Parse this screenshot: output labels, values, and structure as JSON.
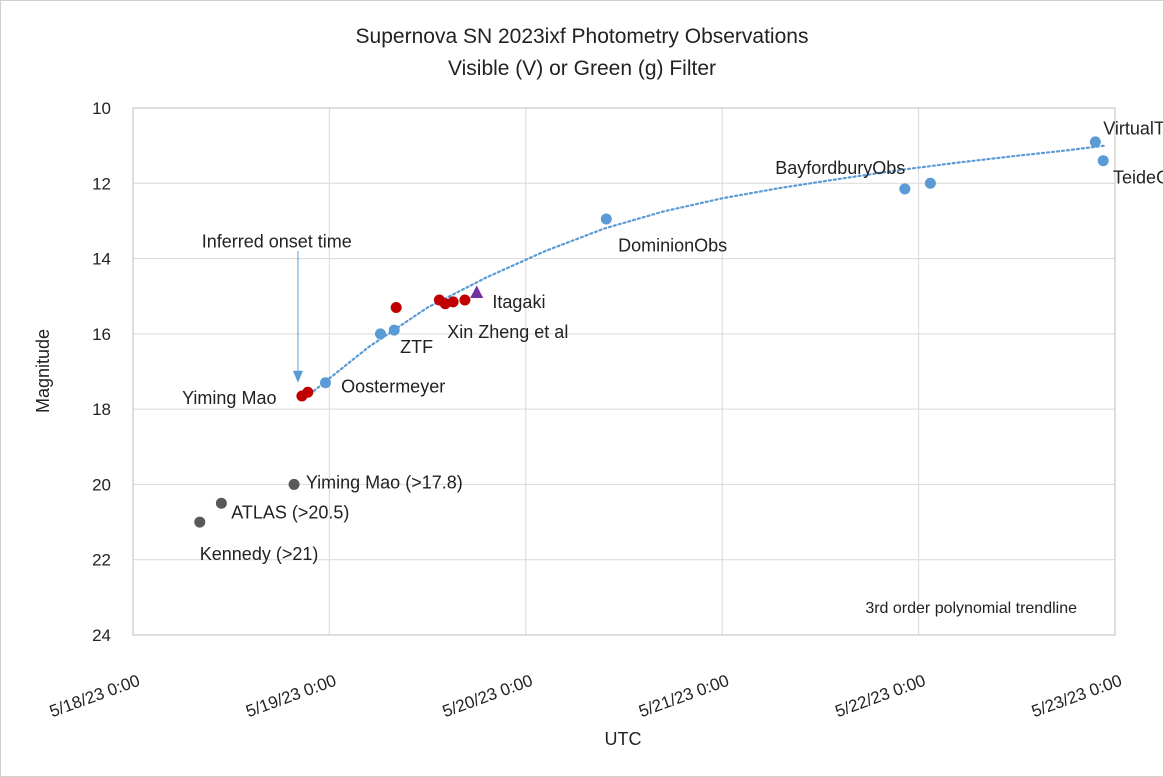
{
  "chart_data": {
    "type": "scatter",
    "title": "Supernova SN 2023ixf Photometry Observations",
    "subtitle": "Visible (V) or Green (g) Filter",
    "xlabel": "UTC",
    "ylabel": "Magnitude",
    "x_ticks": [
      "5/18/23 0:00",
      "5/19/23 0:00",
      "5/20/23 0:00",
      "5/21/23 0:00",
      "5/22/23 0:00",
      "5/23/23 0:00"
    ],
    "xlim_days": [
      0,
      5
    ],
    "ylim": [
      10,
      24
    ],
    "y_reversed": true,
    "y_ticks": [
      10,
      12,
      14,
      16,
      18,
      20,
      22,
      24
    ],
    "grid": true,
    "x_origin": "5/18/23 0:00",
    "colors": {
      "blue": "#5b9bd5",
      "red": "#c00000",
      "gray": "#595959",
      "purple": "#7030a0",
      "arrow": "#5b9bd5",
      "trend": "#5b9bd5",
      "grid": "#d9d9d9",
      "axis": "#bfbfbf"
    },
    "series": [
      {
        "color_key": "blue",
        "marker": "circle",
        "points": [
          {
            "x": 0.98,
            "y": 17.3
          },
          {
            "x": 1.26,
            "y": 16.0
          },
          {
            "x": 1.33,
            "y": 15.9
          },
          {
            "x": 2.41,
            "y": 12.95
          },
          {
            "x": 3.93,
            "y": 12.15
          },
          {
            "x": 4.06,
            "y": 12.0
          },
          {
            "x": 4.9,
            "y": 10.9
          },
          {
            "x": 4.94,
            "y": 11.4
          }
        ]
      },
      {
        "color_key": "red",
        "marker": "circle",
        "points": [
          {
            "x": 0.86,
            "y": 17.65
          },
          {
            "x": 0.89,
            "y": 17.55
          },
          {
            "x": 1.34,
            "y": 15.3
          },
          {
            "x": 1.56,
            "y": 15.1
          },
          {
            "x": 1.59,
            "y": 15.2
          },
          {
            "x": 1.63,
            "y": 15.15
          },
          {
            "x": 1.69,
            "y": 15.1
          }
        ]
      },
      {
        "color_key": "purple",
        "marker": "triangle",
        "points": [
          {
            "x": 1.75,
            "y": 14.9
          }
        ]
      },
      {
        "color_key": "gray",
        "marker": "circle",
        "points": [
          {
            "x": 0.34,
            "y": 21.0
          },
          {
            "x": 0.45,
            "y": 20.5
          },
          {
            "x": 0.82,
            "y": 20.0
          }
        ]
      }
    ],
    "trendline": {
      "label": "3rd order polynomial trendline",
      "points": [
        {
          "x": 0.9,
          "y": 17.6
        },
        {
          "x": 1.2,
          "y": 16.35
        },
        {
          "x": 1.5,
          "y": 15.3
        },
        {
          "x": 1.8,
          "y": 14.5
        },
        {
          "x": 2.1,
          "y": 13.8
        },
        {
          "x": 2.4,
          "y": 13.2
        },
        {
          "x": 2.7,
          "y": 12.75
        },
        {
          "x": 3.0,
          "y": 12.4
        },
        {
          "x": 3.3,
          "y": 12.12
        },
        {
          "x": 3.6,
          "y": 11.88
        },
        {
          "x": 3.9,
          "y": 11.65
        },
        {
          "x": 4.2,
          "y": 11.45
        },
        {
          "x": 4.5,
          "y": 11.27
        },
        {
          "x": 4.75,
          "y": 11.13
        },
        {
          "x": 4.95,
          "y": 11.0
        }
      ]
    },
    "annotations": [
      {
        "text": "VirtualTelescope",
        "x": 4.94,
        "y": 10.55,
        "anchor": "start"
      },
      {
        "text": "TeideObs",
        "x": 4.99,
        "y": 11.85,
        "anchor": "start"
      },
      {
        "text": "BayfordburyObs",
        "x": 3.27,
        "y": 11.6,
        "anchor": "start"
      },
      {
        "text": "DominionObs",
        "x": 2.47,
        "y": 13.65,
        "anchor": "start"
      },
      {
        "text": "Itagaki",
        "x": 1.83,
        "y": 15.15,
        "anchor": "start"
      },
      {
        "text": "Xin Zheng et al",
        "x": 1.6,
        "y": 15.95,
        "anchor": "start"
      },
      {
        "text": "ZTF",
        "x": 1.36,
        "y": 16.35,
        "anchor": "start"
      },
      {
        "text": "Oostermeyer",
        "x": 1.06,
        "y": 17.4,
        "anchor": "start"
      },
      {
        "text": "Yiming Mao",
        "x": 0.25,
        "y": 17.7,
        "anchor": "start"
      },
      {
        "text": "Yiming Mao (>17.8)",
        "x": 0.88,
        "y": 19.95,
        "anchor": "start"
      },
      {
        "text": "ATLAS (>20.5)",
        "x": 0.5,
        "y": 20.75,
        "anchor": "start"
      },
      {
        "text": "Kennedy (>21)",
        "x": 0.34,
        "y": 21.85,
        "anchor": "start"
      },
      {
        "text": "Inferred onset time",
        "x": 0.35,
        "y": 13.55,
        "anchor": "start"
      }
    ],
    "arrow": {
      "x": 0.84,
      "y_from": 13.8,
      "y_to": 17.3
    }
  }
}
